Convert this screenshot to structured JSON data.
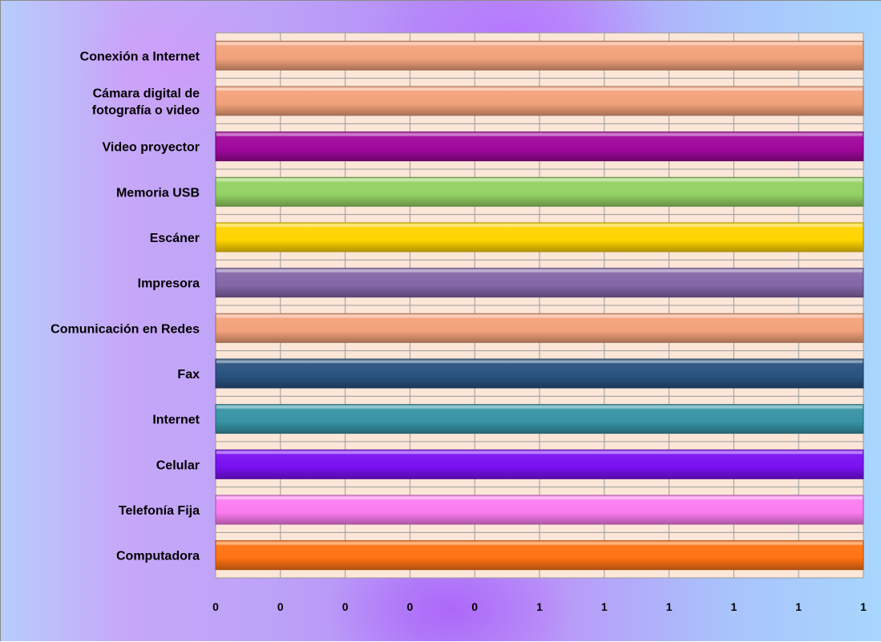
{
  "chart_data": {
    "type": "bar",
    "orientation": "horizontal",
    "title": "",
    "xlabel": "",
    "ylabel": "",
    "categories": [
      "Conexión a Internet",
      "Cámara digital de fotografía o video",
      "Video proyector",
      "Memoria USB",
      "Escáner",
      "Impresora",
      "Comunicación en Redes",
      "Fax",
      "Internet",
      "Celular",
      "Telefonía Fija",
      "Computadora"
    ],
    "category_label_lines": [
      [
        "Conexión a Internet"
      ],
      [
        "Cámara digital de",
        "fotografía o video"
      ],
      [
        "Video proyector"
      ],
      [
        "Memoria USB"
      ],
      [
        "Escáner"
      ],
      [
        "Impresora"
      ],
      [
        "Comunicación en Redes"
      ],
      [
        "Fax"
      ],
      [
        "Internet"
      ],
      [
        "Celular"
      ],
      [
        "Telefonía Fija"
      ],
      [
        "Computadora"
      ]
    ],
    "values": [
      1,
      1,
      1,
      1,
      1,
      1,
      1,
      1,
      1,
      1,
      1,
      1
    ],
    "bar_colors": [
      "#F2A27A",
      "#F2A27A",
      "#A0089C",
      "#94D163",
      "#FFD400",
      "#8466A8",
      "#F2A27A",
      "#28527F",
      "#3794A6",
      "#7A10F2",
      "#FA7CF0",
      "#FF7212"
    ],
    "xlim": [
      0,
      1
    ],
    "tick_labels": [
      "0",
      "0",
      "0",
      "0",
      "0",
      "1",
      "1",
      "1",
      "1",
      "1",
      "1"
    ],
    "grid": true,
    "plot_background": "#FBE6D8",
    "legend": "none"
  }
}
